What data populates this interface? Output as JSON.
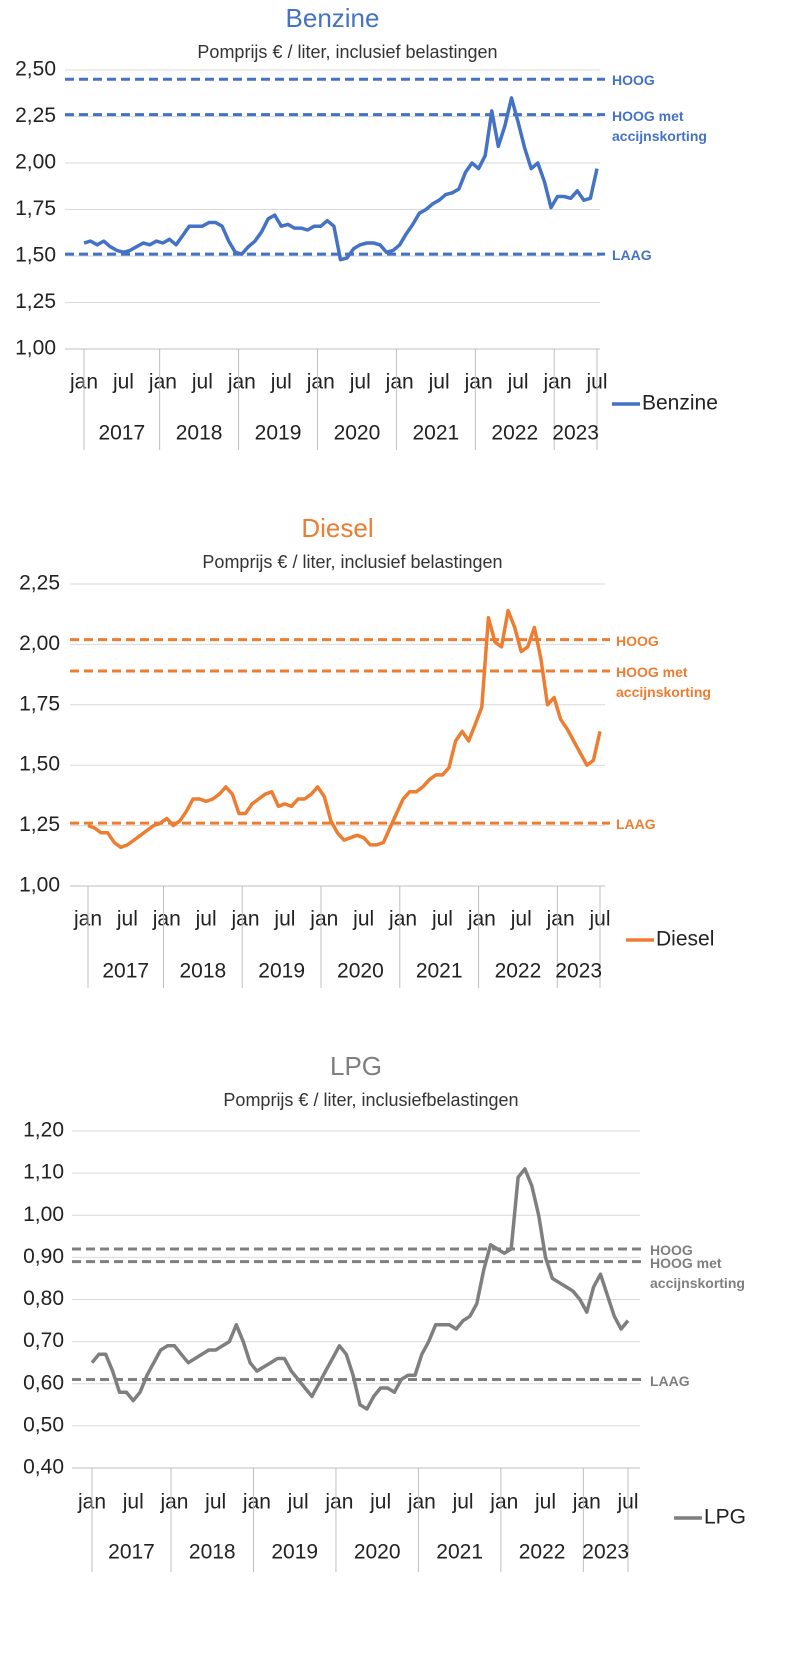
{
  "chart_data": [
    {
      "type": "line",
      "title": "Benzine",
      "subtitle": "Pomprijs € / liter, inclusief belastingen",
      "categories": [
        "jan",
        null,
        null,
        null,
        null,
        null,
        "jul",
        null,
        null,
        null,
        null,
        null,
        "jan",
        null,
        null,
        null,
        null,
        null,
        "jul",
        null,
        null,
        null,
        null,
        null,
        "jan",
        null,
        null,
        null,
        null,
        null,
        "jul",
        null,
        null,
        null,
        null,
        null,
        "jan",
        null,
        null,
        null,
        null,
        null,
        "jul",
        null,
        null,
        null,
        null,
        null,
        "jan",
        null,
        null,
        null,
        null,
        null,
        "jul",
        null,
        null,
        null,
        null,
        null,
        "jan",
        null,
        null,
        null,
        null,
        null,
        "jul",
        null,
        null,
        null,
        null,
        null,
        "jan",
        null,
        null,
        null,
        null,
        null,
        "jul"
      ],
      "years": [
        "2017",
        "2018",
        "2019",
        "2020",
        "2021",
        "2022",
        "2023"
      ],
      "series": [
        {
          "name": "Benzine",
          "color": "#4472c4",
          "values": [
            1.57,
            1.58,
            1.56,
            1.58,
            1.55,
            1.53,
            1.52,
            1.53,
            1.55,
            1.57,
            1.56,
            1.58,
            1.57,
            1.59,
            1.56,
            1.61,
            1.66,
            1.66,
            1.66,
            1.68,
            1.68,
            1.66,
            1.58,
            1.52,
            1.51,
            1.55,
            1.58,
            1.63,
            1.7,
            1.72,
            1.66,
            1.67,
            1.65,
            1.65,
            1.64,
            1.66,
            1.66,
            1.69,
            1.66,
            1.48,
            1.49,
            1.54,
            1.56,
            1.57,
            1.57,
            1.56,
            1.52,
            1.53,
            1.56,
            1.62,
            1.67,
            1.73,
            1.75,
            1.78,
            1.8,
            1.83,
            1.84,
            1.86,
            1.95,
            2.0,
            1.97,
            2.04,
            2.28,
            2.09,
            2.2,
            2.35,
            2.22,
            2.08,
            1.97,
            2.0,
            1.9,
            1.76,
            1.82,
            1.82,
            1.81,
            1.85,
            1.8,
            1.81,
            1.97
          ]
        }
      ],
      "reference_lines": [
        {
          "label": "HOOG",
          "value": 2.45
        },
        {
          "label": "HOOG met accijnskorting",
          "value": 2.26
        },
        {
          "label": "LAAG",
          "value": 1.51
        }
      ],
      "ylim": [
        1.0,
        2.5
      ],
      "yticks": [
        {
          "value": 1.0,
          "label": "1,00"
        },
        {
          "value": 1.25,
          "label": "1,25"
        },
        {
          "value": 1.5,
          "label": "1,50"
        },
        {
          "value": 1.75,
          "label": "1,75"
        },
        {
          "value": 2.0,
          "label": "2,00"
        },
        {
          "value": 2.25,
          "label": "2,25"
        },
        {
          "value": 2.5,
          "label": "2,50"
        }
      ],
      "grid": true,
      "legend": "right"
    },
    {
      "type": "line",
      "title": "Diesel",
      "subtitle": "Pomprijs € / liter, inclusief belastingen",
      "categories": [
        "jan",
        null,
        null,
        null,
        null,
        null,
        "jul",
        null,
        null,
        null,
        null,
        null,
        "jan",
        null,
        null,
        null,
        null,
        null,
        "jul",
        null,
        null,
        null,
        null,
        null,
        "jan",
        null,
        null,
        null,
        null,
        null,
        "jul",
        null,
        null,
        null,
        null,
        null,
        "jan",
        null,
        null,
        null,
        null,
        null,
        "jul",
        null,
        null,
        null,
        null,
        null,
        "jan",
        null,
        null,
        null,
        null,
        null,
        "jul",
        null,
        null,
        null,
        null,
        null,
        "jan",
        null,
        null,
        null,
        null,
        null,
        "jul",
        null,
        null,
        null,
        null,
        null,
        "jan",
        null,
        null,
        null,
        null,
        null,
        "jul"
      ],
      "years": [
        "2017",
        "2018",
        "2019",
        "2020",
        "2021",
        "2022",
        "2023"
      ],
      "series": [
        {
          "name": "Diesel",
          "color": "#ed7d31",
          "values": [
            1.25,
            1.24,
            1.22,
            1.22,
            1.18,
            1.16,
            1.17,
            1.19,
            1.21,
            1.23,
            1.25,
            1.26,
            1.28,
            1.25,
            1.27,
            1.31,
            1.36,
            1.36,
            1.35,
            1.36,
            1.38,
            1.41,
            1.38,
            1.3,
            1.3,
            1.34,
            1.36,
            1.38,
            1.39,
            1.33,
            1.34,
            1.33,
            1.36,
            1.36,
            1.38,
            1.41,
            1.37,
            1.27,
            1.22,
            1.19,
            1.2,
            1.21,
            1.2,
            1.17,
            1.17,
            1.18,
            1.24,
            1.3,
            1.36,
            1.39,
            1.39,
            1.41,
            1.44,
            1.46,
            1.46,
            1.49,
            1.6,
            1.64,
            1.6,
            1.67,
            1.74,
            2.11,
            2.01,
            1.99,
            2.14,
            2.07,
            1.97,
            1.99,
            2.07,
            1.94,
            1.75,
            1.78,
            1.69,
            1.65,
            1.6,
            1.55,
            1.5,
            1.52,
            1.64
          ]
        }
      ],
      "reference_lines": [
        {
          "label": "HOOG",
          "value": 2.02
        },
        {
          "label": "HOOG met accijnskorting",
          "value": 1.89
        },
        {
          "label": "LAAG",
          "value": 1.26
        }
      ],
      "ylim": [
        1.0,
        2.25
      ],
      "yticks": [
        {
          "value": 1.0,
          "label": "1,00"
        },
        {
          "value": 1.25,
          "label": "1,25"
        },
        {
          "value": 1.5,
          "label": "1,50"
        },
        {
          "value": 1.75,
          "label": "1,75"
        },
        {
          "value": 2.0,
          "label": "2,00"
        },
        {
          "value": 2.25,
          "label": "2,25"
        }
      ],
      "grid": true,
      "legend": "right"
    },
    {
      "type": "line",
      "title": "LPG",
      "subtitle": "Pomprijs € / liter, inclusiefbelastingen",
      "categories": [
        "jan",
        null,
        null,
        null,
        null,
        null,
        "jul",
        null,
        null,
        null,
        null,
        null,
        "jan",
        null,
        null,
        null,
        null,
        null,
        "jul",
        null,
        null,
        null,
        null,
        null,
        "jan",
        null,
        null,
        null,
        null,
        null,
        "jul",
        null,
        null,
        null,
        null,
        null,
        "jan",
        null,
        null,
        null,
        null,
        null,
        "jul",
        null,
        null,
        null,
        null,
        null,
        "jan",
        null,
        null,
        null,
        null,
        null,
        "jul",
        null,
        null,
        null,
        null,
        null,
        "jan",
        null,
        null,
        null,
        null,
        null,
        "jul",
        null,
        null,
        null,
        null,
        null,
        "jan",
        null,
        null,
        null,
        null,
        null,
        "jul"
      ],
      "years": [
        "2017",
        "2018",
        "2019",
        "2020",
        "2021",
        "2022",
        "2023"
      ],
      "series": [
        {
          "name": "LPG",
          "color": "#7f7f7f",
          "values": [
            0.65,
            0.67,
            0.67,
            0.63,
            0.58,
            0.58,
            0.56,
            0.58,
            0.62,
            0.65,
            0.68,
            0.69,
            0.69,
            0.67,
            0.65,
            0.66,
            0.67,
            0.68,
            0.68,
            0.69,
            0.7,
            0.74,
            0.7,
            0.65,
            0.63,
            0.64,
            0.65,
            0.66,
            0.66,
            0.63,
            0.61,
            0.59,
            0.57,
            0.6,
            0.63,
            0.66,
            0.69,
            0.67,
            0.62,
            0.55,
            0.54,
            0.57,
            0.59,
            0.59,
            0.58,
            0.61,
            0.62,
            0.62,
            0.67,
            0.7,
            0.74,
            0.74,
            0.74,
            0.73,
            0.75,
            0.76,
            0.79,
            0.87,
            0.93,
            0.92,
            0.91,
            0.92,
            1.09,
            1.11,
            1.07,
            1.0,
            0.9,
            0.85,
            0.84,
            0.83,
            0.82,
            0.8,
            0.77,
            0.83,
            0.86,
            0.81,
            0.76,
            0.73,
            0.75
          ]
        }
      ],
      "reference_lines": [
        {
          "label": "HOOG",
          "value": 0.92
        },
        {
          "label": "HOOG met accijnskorting",
          "value": 0.89
        },
        {
          "label": "LAAG",
          "value": 0.61
        }
      ],
      "ylim": [
        0.4,
        1.2
      ],
      "yticks": [
        {
          "value": 0.4,
          "label": "0,40"
        },
        {
          "value": 0.5,
          "label": "0,50"
        },
        {
          "value": 0.6,
          "label": "0,60"
        },
        {
          "value": 0.7,
          "label": "0,70"
        },
        {
          "value": 0.8,
          "label": "0,80"
        },
        {
          "value": 0.9,
          "label": "0,90"
        },
        {
          "value": 1.0,
          "label": "1,00"
        },
        {
          "value": 1.1,
          "label": "1,10"
        },
        {
          "value": 1.2,
          "label": "1,20"
        }
      ],
      "grid": true,
      "legend": "right"
    }
  ]
}
